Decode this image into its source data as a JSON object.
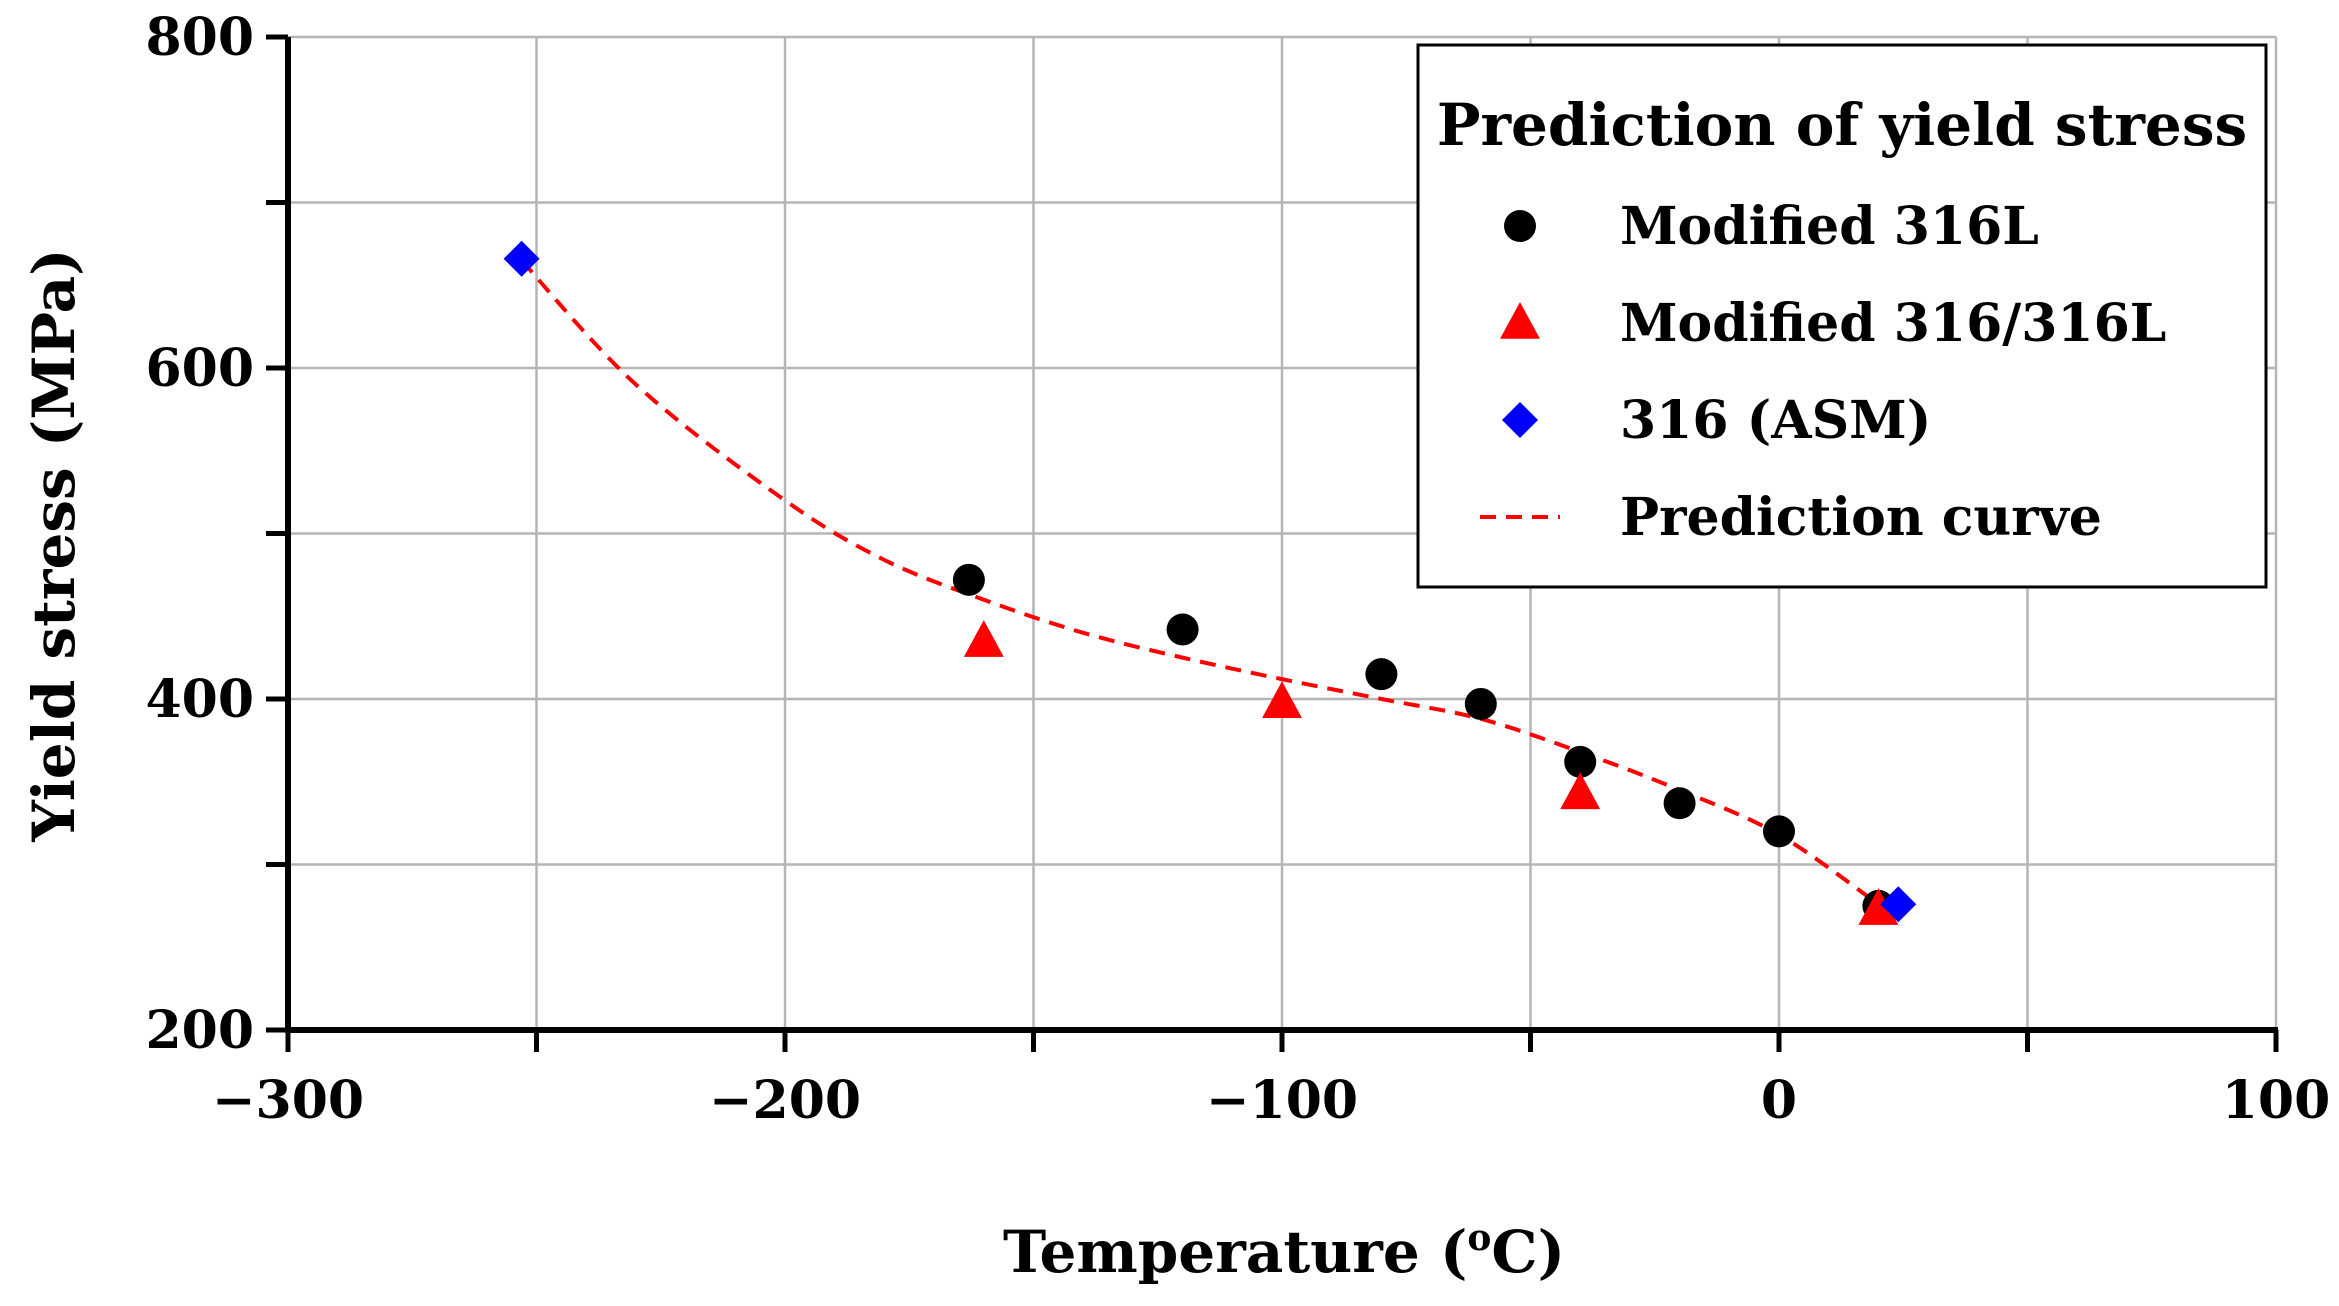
{
  "chart_data": {
    "type": "scatter",
    "title": "",
    "xlabel": "Temperature (",
    "xlabel_sup": "o",
    "xlabel_unit": "C)",
    "ylabel": "Yield stress (MPa)",
    "xlim": [
      -300,
      100
    ],
    "ylim": [
      200,
      800
    ],
    "x_ticks": [
      -300,
      -200,
      -100,
      0,
      100
    ],
    "x_tick_labels": [
      "−300",
      "−200",
      "−100",
      "0",
      "100"
    ],
    "y_ticks": [
      200,
      400,
      600,
      800
    ],
    "y_tick_labels": [
      "200",
      "400",
      "600",
      "800"
    ],
    "x_grid_step": 50,
    "y_grid_step": 100,
    "grid": true,
    "legend": {
      "title": "Prediction of yield stress",
      "placement": "top-right"
    },
    "series": [
      {
        "name": "Modified 316L",
        "marker": "circle",
        "color": "#000000",
        "x": [
          -163,
          -120,
          -80,
          -60,
          -40,
          -20,
          0,
          20
        ],
        "y": [
          472,
          442,
          415,
          397,
          362,
          337,
          320,
          275
        ]
      },
      {
        "name": "Modified 316/316L",
        "marker": "triangle",
        "color": "#ff0000",
        "x": [
          -160,
          -100,
          -40,
          20
        ],
        "y": [
          435,
          398,
          343,
          273
        ]
      },
      {
        "name": "316 (ASM)",
        "marker": "diamond",
        "color": "#0000ff",
        "x": [
          -253,
          24
        ],
        "y": [
          666,
          276
        ]
      },
      {
        "name": "Prediction curve",
        "marker": "dashed-line",
        "color": "#ff0000",
        "x": [
          -253,
          -230,
          -200,
          -180,
          -160,
          -140,
          -120,
          -100,
          -80,
          -60,
          -40,
          -20,
          0,
          20
        ],
        "y": [
          665,
          590,
          520,
          484,
          460,
          440,
          425,
          412,
          400,
          388,
          368,
          345,
          318,
          276
        ]
      }
    ]
  }
}
